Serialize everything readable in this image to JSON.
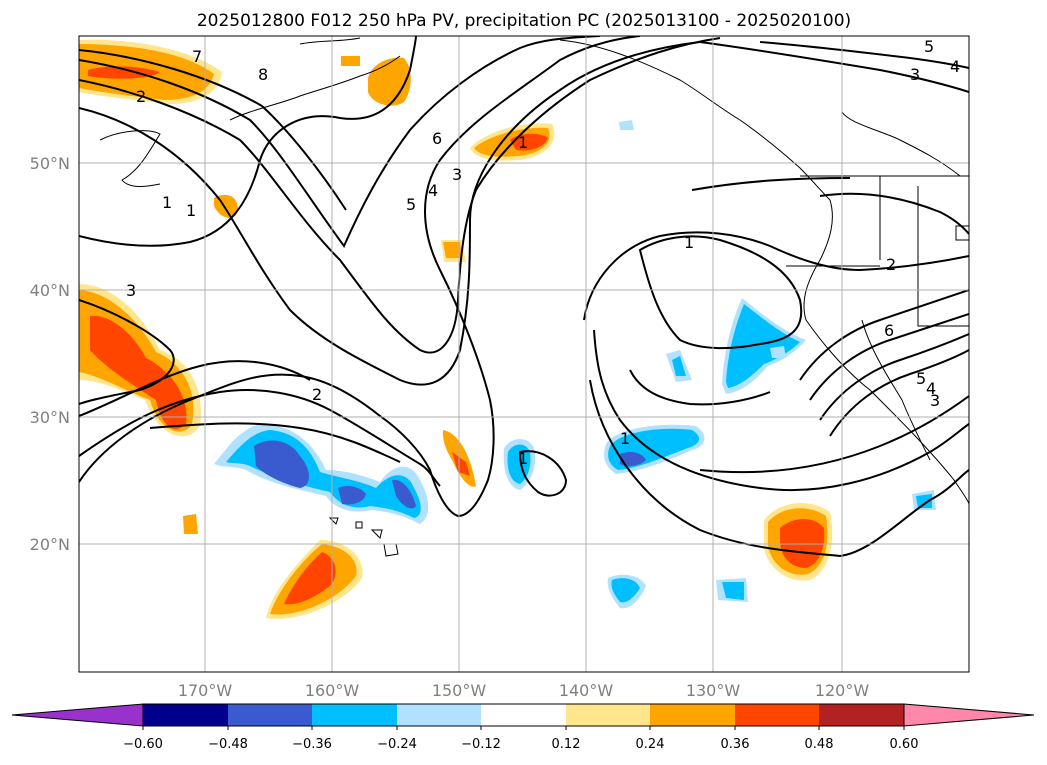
{
  "title": "2025012800 F012 250 hPa PV, precipitation PC (2025013100 - 2025020100)",
  "map": {
    "lat_ticks": [
      "50°N",
      "40°N",
      "30°N",
      "20°N"
    ],
    "lon_ticks": [
      "170°W",
      "160°W",
      "150°W",
      "140°W",
      "130°W",
      "120°W"
    ],
    "pv_contour_labels": [
      "7",
      "8",
      "2",
      "1",
      "3",
      "6",
      "5",
      "4",
      "3",
      "1",
      "2",
      "1",
      "1",
      "1",
      "1",
      "5",
      "4",
      "3",
      "2",
      "6",
      "5",
      "4",
      "3"
    ],
    "grid": true
  },
  "colorbar": {
    "ticks": [
      "−0.60",
      "−0.48",
      "−0.36",
      "−0.24",
      "−0.12",
      "0.12",
      "0.24",
      "0.36",
      "0.48",
      "0.60"
    ],
    "colors": [
      "#9932cc",
      "#00008b",
      "#3a5bcf",
      "#00bfff",
      "#b0e2ff",
      "#ffffff",
      "#ffe68c",
      "#ffa500",
      "#ff4500",
      "#b22222",
      "#ff88aa"
    ]
  }
}
